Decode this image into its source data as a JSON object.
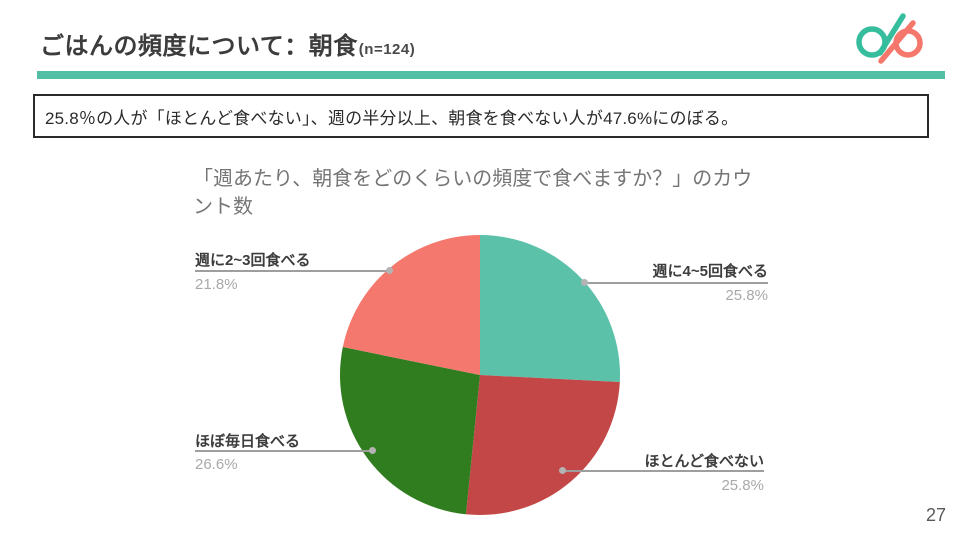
{
  "slide": {
    "title": "ごはんの頻度について：朝食",
    "title_suffix": "(n=124)",
    "page_number": "27",
    "accent_color": "#52BFA5"
  },
  "logo": {
    "teal": "#35BD9D",
    "pink": "#F5776C"
  },
  "statement": {
    "text": "25.8％の人が「ほとんど食べない」、週の半分以上、朝食を食べない人が47.6%にのぼる。"
  },
  "chart_data": {
    "type": "pie",
    "title": "「週あたり、朝食をどのくらいの頻度で食べますか？」のカウント数",
    "categories": [
      "週に4~5回食べる",
      "ほとんど食べない",
      "ほぼ毎日食べる",
      "週に2~3回食べる"
    ],
    "values": [
      25.8,
      25.8,
      26.6,
      21.8
    ],
    "unit": "%",
    "colors": [
      "#5CC1A9",
      "#C44747",
      "#2F7D1E",
      "#F4786E"
    ],
    "start_angle_deg": 0,
    "direction": "clockwise",
    "legend_position": "callout-labels",
    "labels": [
      {
        "name": "週に4~5回食べる",
        "value": "25.8%"
      },
      {
        "name": "ほとんど食べない",
        "value": "25.8%"
      },
      {
        "name": "ほぼ毎日食べる",
        "value": "26.6%"
      },
      {
        "name": "週に2~3回食べる",
        "value": "21.8%"
      }
    ]
  }
}
